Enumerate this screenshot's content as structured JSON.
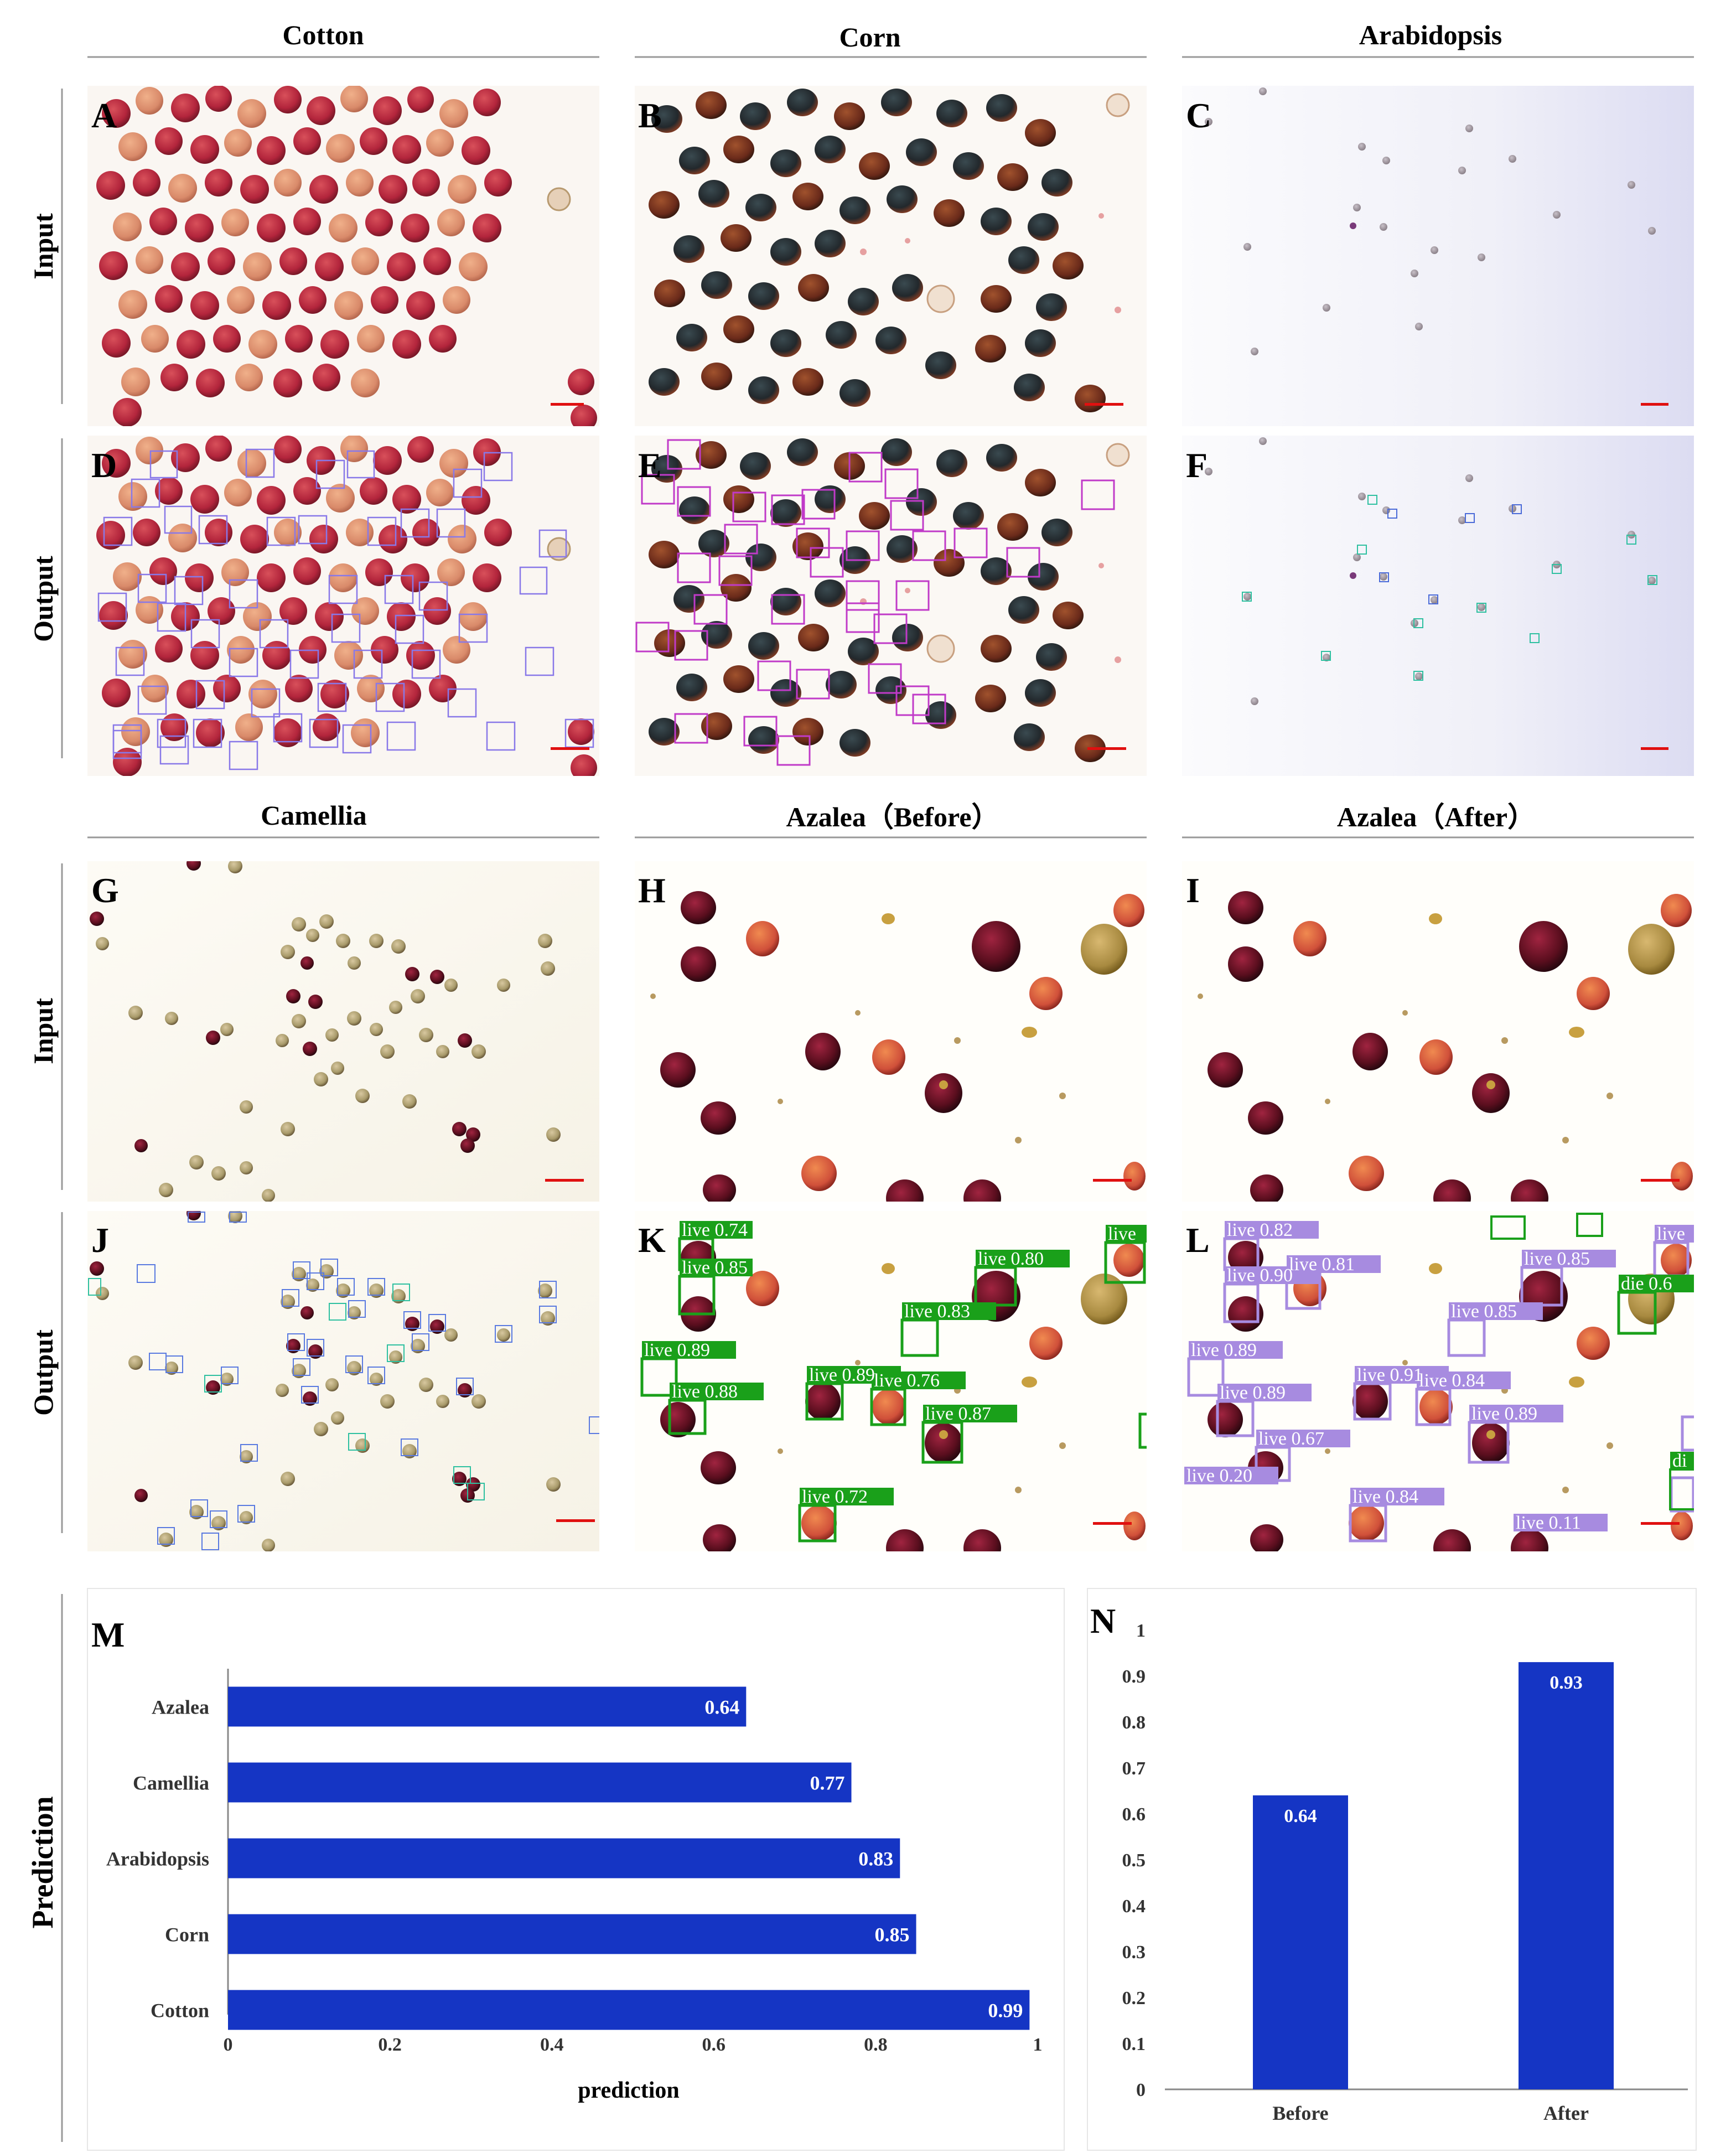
{
  "columns_top": [
    "Cotton",
    "Corn",
    "Arabidopsis"
  ],
  "columns_bottom": [
    "Camellia",
    "Azalea（Before）",
    "Azalea（After）"
  ],
  "row_labels": {
    "input": "Input",
    "output": "Output",
    "prediction": "Prediction"
  },
  "panel_letters": {
    "A": "A",
    "B": "B",
    "C": "C",
    "D": "D",
    "E": "E",
    "F": "F",
    "G": "G",
    "H": "H",
    "I": "I",
    "J": "J",
    "K": "K",
    "L": "L",
    "M": "M",
    "N": "N"
  },
  "colors": {
    "bar": "#1535c4",
    "live_green": "#1aa01a",
    "live_purple": "#a78be0",
    "die_green": "#1aa01a",
    "scale_bar": "#e01010"
  },
  "detections": {
    "K": [
      {
        "label": "live 0.74"
      },
      {
        "label": "live 0.85"
      },
      {
        "label": "live 0.80"
      },
      {
        "label": "live"
      },
      {
        "label": "live 0.83"
      },
      {
        "label": "live 0.89"
      },
      {
        "label": "live 0.88"
      },
      {
        "label": "live 0.89"
      },
      {
        "label": "live 0.76"
      },
      {
        "label": "live 0.87"
      },
      {
        "label": "live 0.72"
      }
    ],
    "L": [
      {
        "label": "live 0.82"
      },
      {
        "label": "live 0.81"
      },
      {
        "label": "live 0.90"
      },
      {
        "label": "live 0.85"
      },
      {
        "label": "live"
      },
      {
        "label": "die 0.6"
      },
      {
        "label": "live 0.85"
      },
      {
        "label": "live 0.89"
      },
      {
        "label": "live 0.91"
      },
      {
        "label": "live 0.84"
      },
      {
        "label": "live 0.89"
      },
      {
        "label": "live 0.89"
      },
      {
        "label": "live 0.67"
      },
      {
        "label": "live 0.20"
      },
      {
        "label": "live 0.84"
      },
      {
        "label": "live 0.11"
      },
      {
        "label": "di"
      }
    ]
  },
  "chart_data": [
    {
      "panel": "M",
      "type": "bar",
      "orientation": "horizontal",
      "categories": [
        "Azalea",
        "Camellia",
        "Arabidopsis",
        "Corn",
        "Cotton"
      ],
      "values": [
        0.64,
        0.77,
        0.83,
        0.85,
        0.99
      ],
      "value_labels": [
        "0.64",
        "0.77",
        "0.83",
        "0.85",
        "0.99"
      ],
      "xlabel": "prediction",
      "ylabel": "",
      "xlim": [
        0,
        1
      ],
      "xticks": [
        "0",
        "0.2",
        "0.4",
        "0.6",
        "0.8",
        "1"
      ],
      "grid": false
    },
    {
      "panel": "N",
      "type": "bar",
      "orientation": "vertical",
      "categories": [
        "Before",
        "After"
      ],
      "values": [
        0.64,
        0.93
      ],
      "value_labels": [
        "0.64",
        "0.93"
      ],
      "xlabel": "",
      "ylabel": "",
      "ylim": [
        0,
        1
      ],
      "yticks": [
        "0",
        "0.1",
        "0.2",
        "0.3",
        "0.4",
        "0.5",
        "0.6",
        "0.7",
        "0.8",
        "0.9",
        "1"
      ],
      "grid": false
    }
  ]
}
